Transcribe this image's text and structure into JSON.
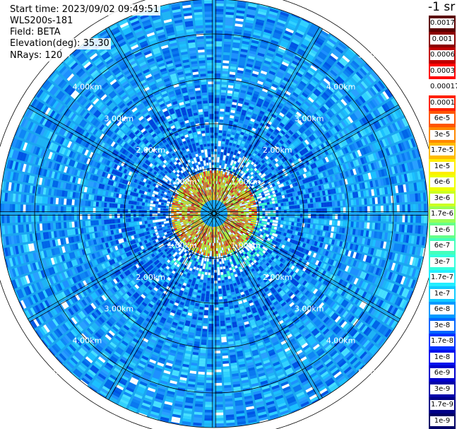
{
  "info": {
    "start_time": "Start time: 2023/09/02 09:49:51",
    "instrument": "WLS200s-181",
    "field": "Field: BETA",
    "elevation": "Elevation(deg): 35.30",
    "nrays": "NRays: 120"
  },
  "colorbar": {
    "unit_label": "-1 sr",
    "labels": [
      "0.0017",
      "0.001",
      "0.0006",
      "0.0003",
      "0.00017",
      "0.0001",
      "6e-5",
      "3e-5",
      "1.7e-5",
      "1e-5",
      "6e-6",
      "3e-6",
      "1.7e-6",
      "1e-6",
      "6e-7",
      "3e-7",
      "1.7e-7",
      "1e-7",
      "6e-8",
      "3e-8",
      "1.7e-8",
      "1e-8",
      "6e-9",
      "3e-9",
      "1.7e-9",
      "1e-9"
    ],
    "colors": [
      "#5a0000",
      "#8b0000",
      "#c00000",
      "#ff0000",
      "#ffffff",
      "#ff2000",
      "#ff5500",
      "#ff8800",
      "#ffbb00",
      "#ffee00",
      "#eeff00",
      "#ccff20",
      "#99ff55",
      "#66ff88",
      "#44ffbb",
      "#33ffdd",
      "#22eeff",
      "#11ccff",
      "#0099ff",
      "#0066ff",
      "#0033ff",
      "#0011ee",
      "#0000cc",
      "#0000aa",
      "#000088",
      "#000066"
    ]
  },
  "range_rings": {
    "labels": [
      "1.00km",
      "2.00km",
      "3.00km",
      "4.00km",
      "5.00km"
    ]
  },
  "chart_data": {
    "type": "heatmap",
    "projection": "polar PPI",
    "field": "BETA",
    "elevation_deg": 35.3,
    "n_rays": 120,
    "range_rings_km": [
      1,
      2,
      3,
      4,
      5
    ],
    "max_range_km": 5.5,
    "color_scale": "log",
    "value_range": [
      1e-09,
      0.0017
    ],
    "near_field_value_range": [
      1e-06,
      1.7e-05
    ],
    "far_field_value_range": [
      1e-08,
      1.7e-07
    ]
  }
}
